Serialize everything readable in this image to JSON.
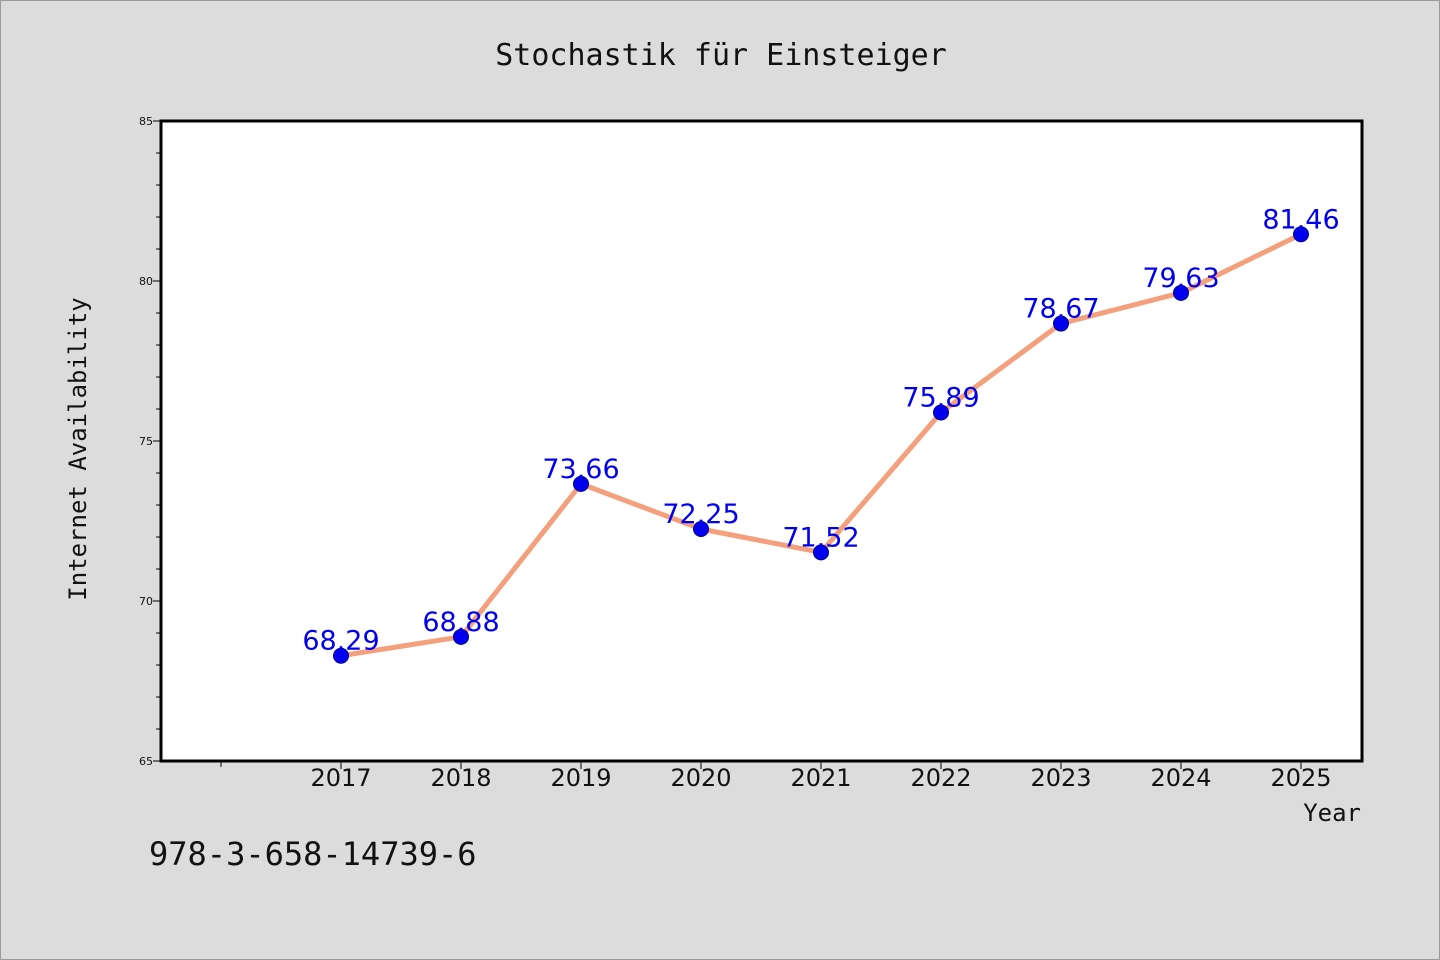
{
  "footer": {
    "isbn": "978-3-658-14739-6"
  },
  "colors": {
    "line": "#f4a07c",
    "marker": "#0000ee",
    "data_label": "#0000ee",
    "plot_background": "#ffffff",
    "page_background": "#dcdcdc"
  },
  "chart_data": {
    "type": "line",
    "title": "Stochastik für Einsteiger",
    "xlabel": "Year",
    "ylabel": "Internet Availability",
    "ylim": [
      65,
      85
    ],
    "yticks": [
      65,
      70,
      75,
      80,
      85
    ],
    "grid": false,
    "legend": "none",
    "categories": [
      "2017",
      "2018",
      "2019",
      "2020",
      "2021",
      "2022",
      "2023",
      "2024",
      "2025"
    ],
    "series": [
      {
        "values": [
          68.29,
          68.88,
          73.66,
          72.25,
          71.52,
          75.89,
          78.67,
          79.63,
          81.46
        ],
        "labels": [
          "68.29",
          "68.88",
          "73.66",
          "72.25",
          "71.52",
          "75.89",
          "78.67",
          "79.63",
          "81.46"
        ]
      }
    ]
  }
}
